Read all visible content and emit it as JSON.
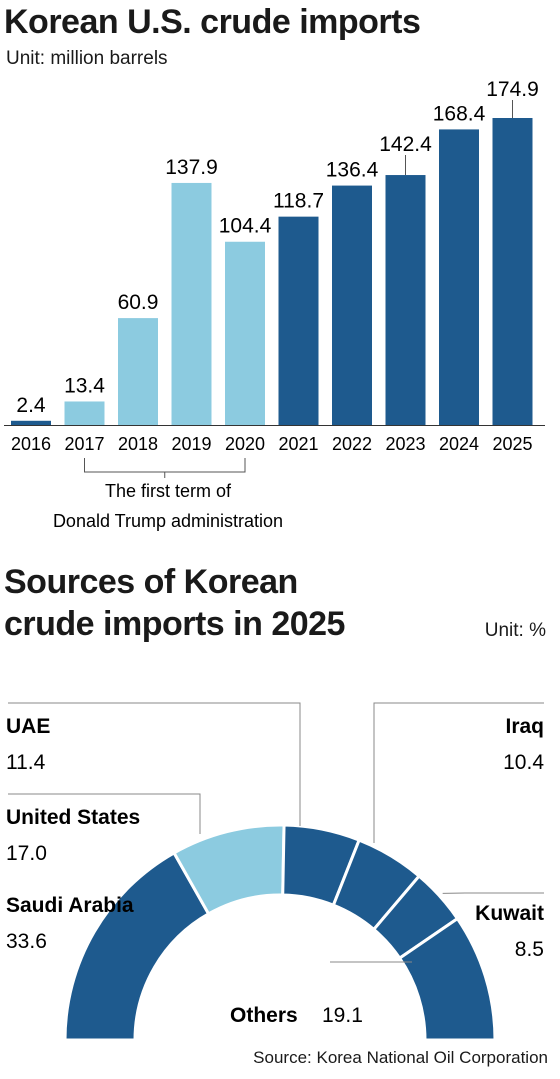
{
  "chart_data": [
    {
      "type": "bar",
      "title": "Korean U.S. crude imports",
      "unit": "Unit: million barrels",
      "categories": [
        "2016",
        "2017",
        "2018",
        "2019",
        "2020",
        "2021",
        "2022",
        "2023",
        "2024",
        "2025"
      ],
      "values": [
        2.4,
        13.4,
        60.9,
        137.9,
        104.4,
        118.7,
        136.4,
        142.4,
        168.4,
        174.9
      ],
      "value_labels": [
        "2.4",
        "13.4",
        "60.9",
        "137.9",
        "104.4",
        "118.7",
        "136.4",
        "142.4",
        "168.4",
        "174.9"
      ],
      "colors": [
        "#1e5a8e",
        "#8ccbe0",
        "#8ccbe0",
        "#8ccbe0",
        "#8ccbe0",
        "#1e5a8e",
        "#1e5a8e",
        "#1e5a8e",
        "#1e5a8e",
        "#1e5a8e"
      ],
      "ylim": [
        0,
        180
      ],
      "grid": false,
      "annotation": {
        "line1": "The first term of",
        "line2": "Donald Trump administration",
        "categories": [
          "2017",
          "2018",
          "2019",
          "2020"
        ]
      }
    },
    {
      "type": "pie",
      "style": "half-donut",
      "title_line1": "Sources of Korean",
      "title_line2": "crude imports in 2025",
      "unit": "Unit: %",
      "slices": [
        {
          "label": "Saudi Arabia",
          "value": 33.6,
          "value_label": "33.6",
          "color": "#1e5a8e"
        },
        {
          "label": "United States",
          "value": 17.0,
          "value_label": "17.0",
          "color": "#8ccbe0"
        },
        {
          "label": "UAE",
          "value": 11.4,
          "value_label": "11.4",
          "color": "#1e5a8e"
        },
        {
          "label": "Iraq",
          "value": 10.4,
          "value_label": "10.4",
          "color": "#1e5a8e"
        },
        {
          "label": "Kuwait",
          "value": 8.5,
          "value_label": "8.5",
          "color": "#1e5a8e"
        },
        {
          "label": "Others",
          "value": 19.1,
          "value_label": "19.1",
          "color": "#1e5a8e"
        }
      ]
    }
  ],
  "source": "Source: Korea National Oil Corporation"
}
